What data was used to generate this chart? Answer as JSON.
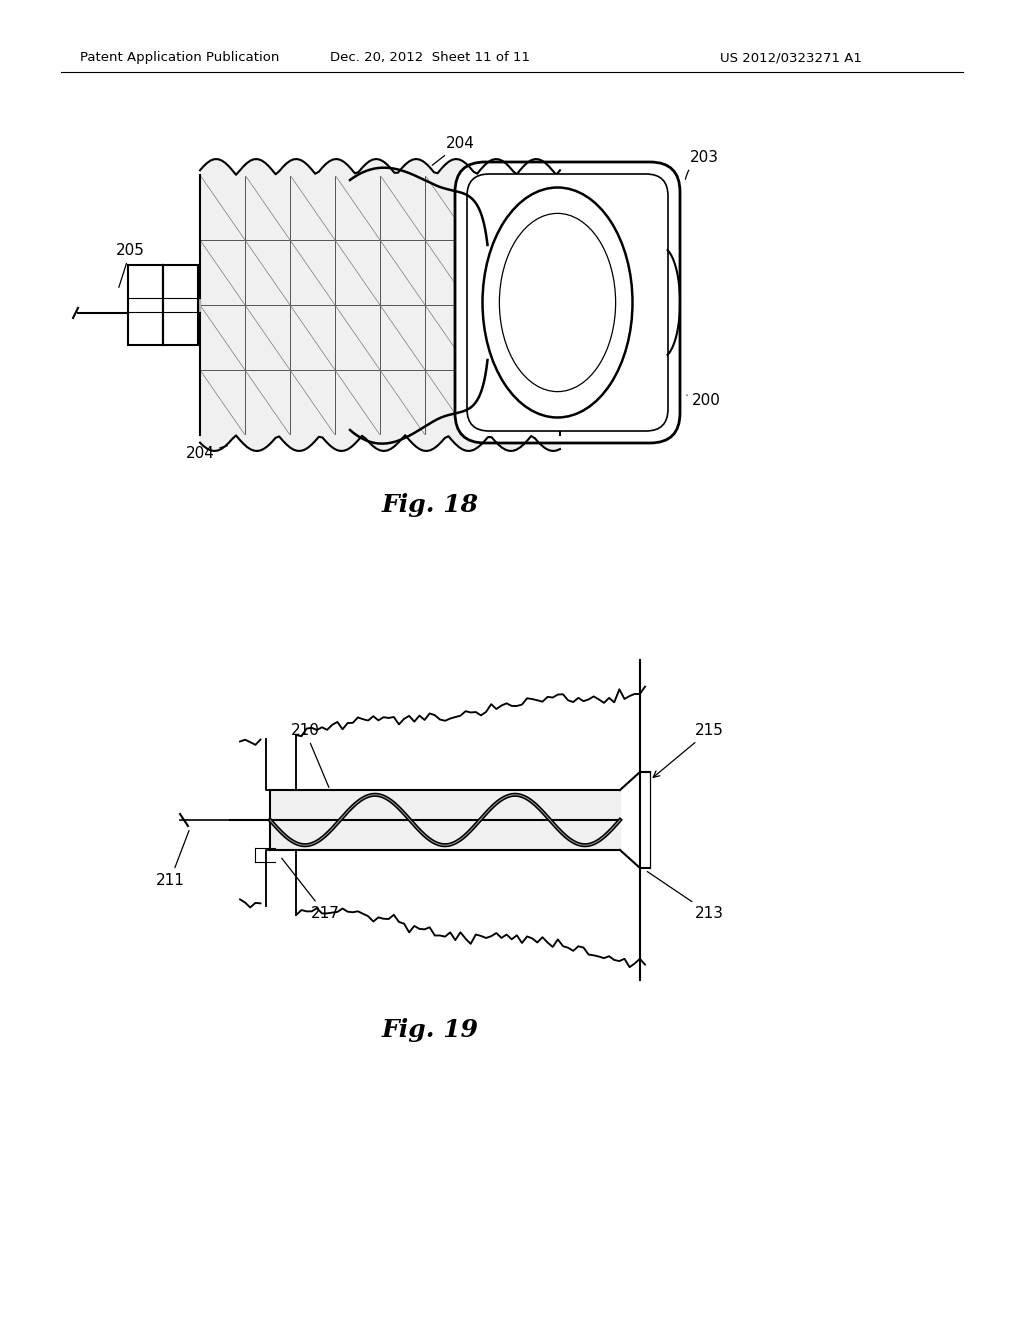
{
  "background_color": "#ffffff",
  "header_left": "Patent Application Publication",
  "header_center": "Dec. 20, 2012  Sheet 11 of 11",
  "header_right": "US 2012/0323271 A1",
  "fig18_caption": "Fig. 18",
  "fig19_caption": "Fig. 19",
  "line_color": "#000000"
}
